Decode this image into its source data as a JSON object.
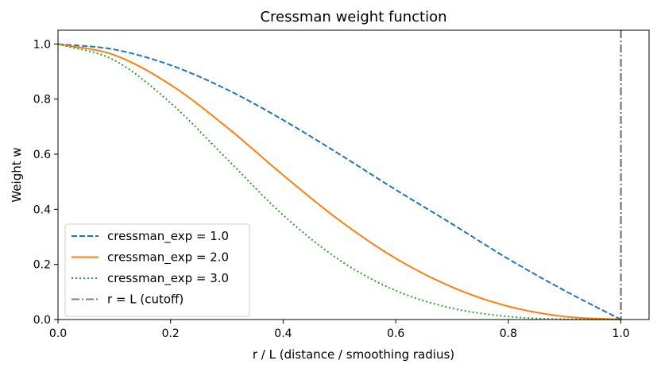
{
  "chart_data": {
    "type": "line",
    "title": "Cressman weight function",
    "xlabel": "r / L  (distance / smoothing radius)",
    "ylabel": "Weight w",
    "xlim": [
      0.0,
      1.05
    ],
    "ylim": [
      0.0,
      1.05
    ],
    "xticks": [
      0.0,
      0.2,
      0.4,
      0.6,
      0.8,
      1.0
    ],
    "xtick_labels": [
      "0.0",
      "0.2",
      "0.4",
      "0.6",
      "0.8",
      "1.0"
    ],
    "yticks": [
      0.0,
      0.2,
      0.4,
      0.6,
      0.8,
      1.0
    ],
    "ytick_labels": [
      "0.0",
      "0.2",
      "0.4",
      "0.6",
      "0.8",
      "1.0"
    ],
    "grid": false,
    "legend_position": "lower-left",
    "series": [
      {
        "name": "cressman_exp = 1.0",
        "color": "#1f77b4",
        "style": "dashed",
        "x": [
          0.0,
          0.1,
          0.2,
          0.3,
          0.4,
          0.5,
          0.6,
          0.7,
          0.8,
          0.9,
          1.0
        ],
        "y": [
          1.0,
          0.98,
          0.923,
          0.835,
          0.724,
          0.6,
          0.471,
          0.347,
          0.22,
          0.105,
          0.0
        ]
      },
      {
        "name": "cressman_exp = 2.0",
        "color": "#ff7f0e",
        "style": "solid",
        "x": [
          0.0,
          0.1,
          0.2,
          0.3,
          0.4,
          0.5,
          0.6,
          0.7,
          0.8,
          0.9,
          1.0
        ],
        "y": [
          1.0,
          0.96,
          0.852,
          0.698,
          0.524,
          0.36,
          0.222,
          0.118,
          0.048,
          0.011,
          0.0
        ]
      },
      {
        "name": "cressman_exp = 3.0",
        "color": "#2ca02c",
        "style": "dotted",
        "x": [
          0.0,
          0.1,
          0.2,
          0.3,
          0.4,
          0.5,
          0.6,
          0.7,
          0.8,
          0.9,
          1.0
        ],
        "y": [
          1.0,
          0.941,
          0.786,
          0.583,
          0.379,
          0.216,
          0.105,
          0.041,
          0.011,
          0.001,
          0.0
        ]
      }
    ],
    "vlines": [
      {
        "name": "r = L (cutoff)",
        "x": 1.0,
        "color": "#808080",
        "style": "dashdot"
      }
    ]
  }
}
